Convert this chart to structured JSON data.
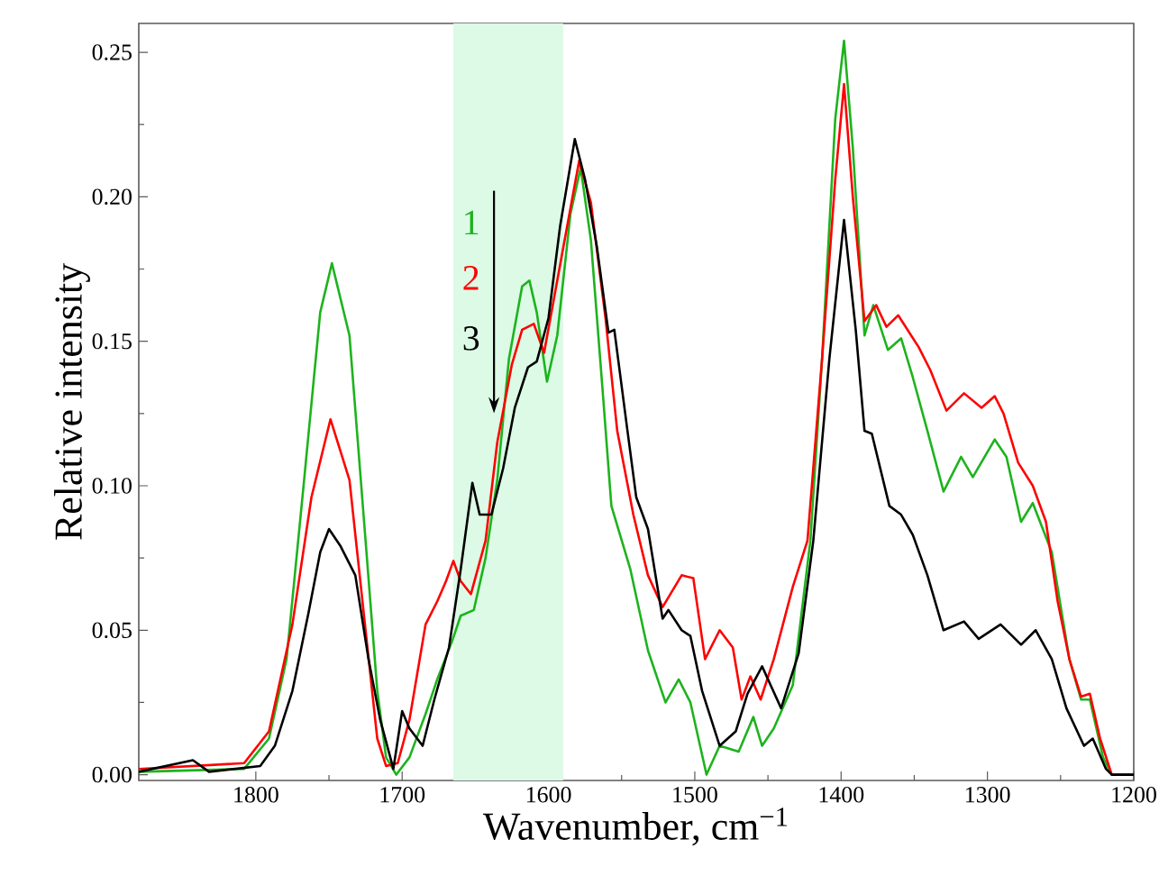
{
  "chart_data": {
    "type": "line",
    "xlabel": "Wavenumber, cm$^{−1}$",
    "ylabel": "Relative intensity",
    "xlim": [
      1880,
      1200
    ],
    "ylim": [
      -0.002,
      0.26
    ],
    "xticks": [
      1800,
      1700,
      1600,
      1500,
      1400,
      1300,
      1200
    ],
    "yticks": [
      {
        "value": 0,
        "label": "0.00"
      },
      {
        "value": 0.05,
        "label": "0.05"
      },
      {
        "value": 0.1,
        "label": "0.10"
      },
      {
        "value": 0.15,
        "label": "0.15"
      },
      {
        "value": 0.2,
        "label": "0.20"
      },
      {
        "value": 0.25,
        "label": "0.25"
      }
    ],
    "bands": [
      {
        "axis": "x",
        "from": 1665,
        "to": 1590,
        "color": "#dcfae5"
      }
    ],
    "series": [
      {
        "name": "1",
        "color": "#1db31d",
        "x": [
          1880,
          1808,
          1791,
          1779,
          1767,
          1756,
          1748,
          1736,
          1725,
          1717,
          1711,
          1704,
          1695,
          1684,
          1676,
          1666,
          1660,
          1651,
          1643,
          1635,
          1627,
          1618,
          1613,
          1608,
          1601,
          1594,
          1585,
          1578,
          1571,
          1563,
          1557,
          1544,
          1532,
          1520,
          1511,
          1503,
          1492,
          1483,
          1470,
          1460,
          1454,
          1446,
          1433,
          1421,
          1413,
          1404,
          1398,
          1392,
          1384,
          1378,
          1368,
          1359,
          1351,
          1341,
          1330,
          1318,
          1310,
          1295,
          1287,
          1277,
          1269,
          1256,
          1244,
          1236,
          1230,
          1221,
          1215,
          1200
        ],
        "values": [
          0.001,
          0.002,
          0.0125,
          0.04,
          0.102,
          0.16,
          0.177,
          0.152,
          0.081,
          0.029,
          0.006,
          0,
          0.006,
          0.021,
          0.033,
          0.046,
          0.055,
          0.057,
          0.075,
          0.102,
          0.144,
          0.169,
          0.171,
          0.16,
          0.136,
          0.152,
          0.194,
          0.21,
          0.185,
          0.133,
          0.093,
          0.071,
          0.043,
          0.025,
          0.033,
          0.025,
          0,
          0.01,
          0.008,
          0.02,
          0.01,
          0.016,
          0.031,
          0.081,
          0.144,
          0.227,
          0.254,
          0.217,
          0.152,
          0.1625,
          0.147,
          0.151,
          0.1375,
          0.119,
          0.098,
          0.11,
          0.103,
          0.116,
          0.11,
          0.0875,
          0.094,
          0.077,
          0.04,
          0.026,
          0.026,
          0.006,
          0,
          0
        ]
      },
      {
        "name": "2",
        "color": "#ff0000",
        "x": [
          1880,
          1808,
          1791,
          1775,
          1762,
          1749,
          1736,
          1725,
          1717,
          1711,
          1703,
          1695,
          1684,
          1676,
          1670,
          1665,
          1660,
          1653,
          1643,
          1635,
          1625,
          1618,
          1610,
          1603,
          1594,
          1585,
          1579,
          1571,
          1561,
          1553,
          1542,
          1532,
          1522,
          1509,
          1501,
          1493,
          1483,
          1474,
          1468,
          1462,
          1455,
          1446,
          1433,
          1423,
          1413,
          1404,
          1398,
          1392,
          1384,
          1376,
          1369,
          1361,
          1347,
          1339,
          1328,
          1316,
          1304,
          1295,
          1289,
          1279,
          1269,
          1260,
          1252,
          1244,
          1236,
          1230,
          1223,
          1215,
          1200
        ],
        "values": [
          0.002,
          0.004,
          0.015,
          0.052,
          0.096,
          0.123,
          0.102,
          0.05,
          0.0125,
          0.003,
          0.004,
          0.019,
          0.052,
          0.06,
          0.067,
          0.074,
          0.067,
          0.0625,
          0.081,
          0.115,
          0.142,
          0.154,
          0.156,
          0.146,
          0.171,
          0.196,
          0.2125,
          0.198,
          0.158,
          0.119,
          0.09,
          0.069,
          0.058,
          0.069,
          0.068,
          0.04,
          0.05,
          0.044,
          0.026,
          0.034,
          0.026,
          0.04,
          0.065,
          0.081,
          0.144,
          0.206,
          0.239,
          0.2,
          0.157,
          0.1625,
          0.155,
          0.159,
          0.148,
          0.14,
          0.126,
          0.132,
          0.127,
          0.131,
          0.125,
          0.108,
          0.1,
          0.0875,
          0.06,
          0.04,
          0.027,
          0.028,
          0.0125,
          0,
          0
        ]
      },
      {
        "name": "3",
        "color": "#000000",
        "x": [
          1880,
          1843,
          1832,
          1797,
          1787,
          1775,
          1764,
          1756,
          1750,
          1742,
          1732,
          1723,
          1715,
          1706,
          1700,
          1695,
          1686,
          1678,
          1668,
          1660,
          1652,
          1647,
          1639,
          1631,
          1623,
          1614,
          1608,
          1600,
          1592,
          1582,
          1575,
          1567,
          1559,
          1555,
          1546,
          1540,
          1532,
          1522,
          1518,
          1509,
          1503,
          1495,
          1483,
          1472,
          1464,
          1454,
          1441,
          1429,
          1419,
          1408,
          1398,
          1390,
          1384,
          1379,
          1367,
          1359,
          1351,
          1341,
          1330,
          1316,
          1306,
          1291,
          1277,
          1267,
          1256,
          1246,
          1234,
          1228,
          1219,
          1215,
          1200
        ],
        "values": [
          0.001,
          0.005,
          0.001,
          0.003,
          0.01,
          0.029,
          0.056,
          0.077,
          0.085,
          0.079,
          0.069,
          0.04,
          0.019,
          0.002,
          0.022,
          0.016,
          0.01,
          0.026,
          0.044,
          0.071,
          0.101,
          0.09,
          0.09,
          0.106,
          0.127,
          0.141,
          0.143,
          0.158,
          0.19,
          0.22,
          0.206,
          0.183,
          0.153,
          0.154,
          0.119,
          0.096,
          0.085,
          0.054,
          0.057,
          0.05,
          0.048,
          0.029,
          0.01,
          0.015,
          0.028,
          0.0375,
          0.023,
          0.042,
          0.081,
          0.144,
          0.192,
          0.154,
          0.119,
          0.118,
          0.093,
          0.09,
          0.083,
          0.069,
          0.05,
          0.053,
          0.047,
          0.052,
          0.045,
          0.05,
          0.04,
          0.023,
          0.01,
          0.0125,
          0.002,
          0,
          0
        ]
      }
    ]
  }
}
